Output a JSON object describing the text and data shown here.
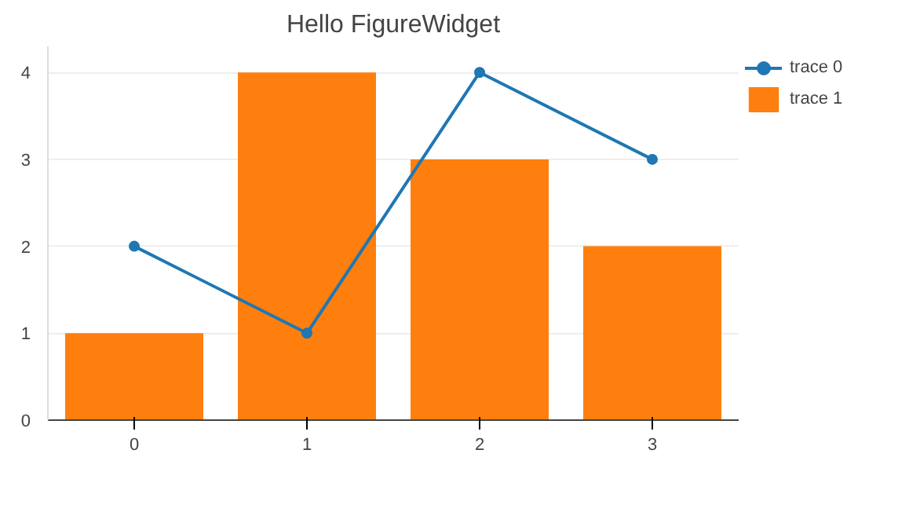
{
  "chart_data": {
    "type": "line",
    "title": "Hello FigureWidget",
    "x": [
      0,
      1,
      2,
      3
    ],
    "series": [
      {
        "name": "trace 0",
        "color": "#1f77b4",
        "values": [
          2,
          1,
          4,
          3
        ]
      },
      {
        "name": "trace 1",
        "type": "bar",
        "color": "#ff7f0e",
        "values": [
          1,
          4,
          3,
          2
        ]
      }
    ],
    "xlim": [
      -0.5,
      3.5
    ],
    "xticks": [
      0,
      1,
      2,
      3
    ],
    "ylim": [
      0,
      4.3
    ],
    "yticks": [
      0,
      1,
      2,
      3,
      4
    ],
    "grid": "y",
    "legend": "top right",
    "marker": "circle",
    "line_style": "solid"
  }
}
